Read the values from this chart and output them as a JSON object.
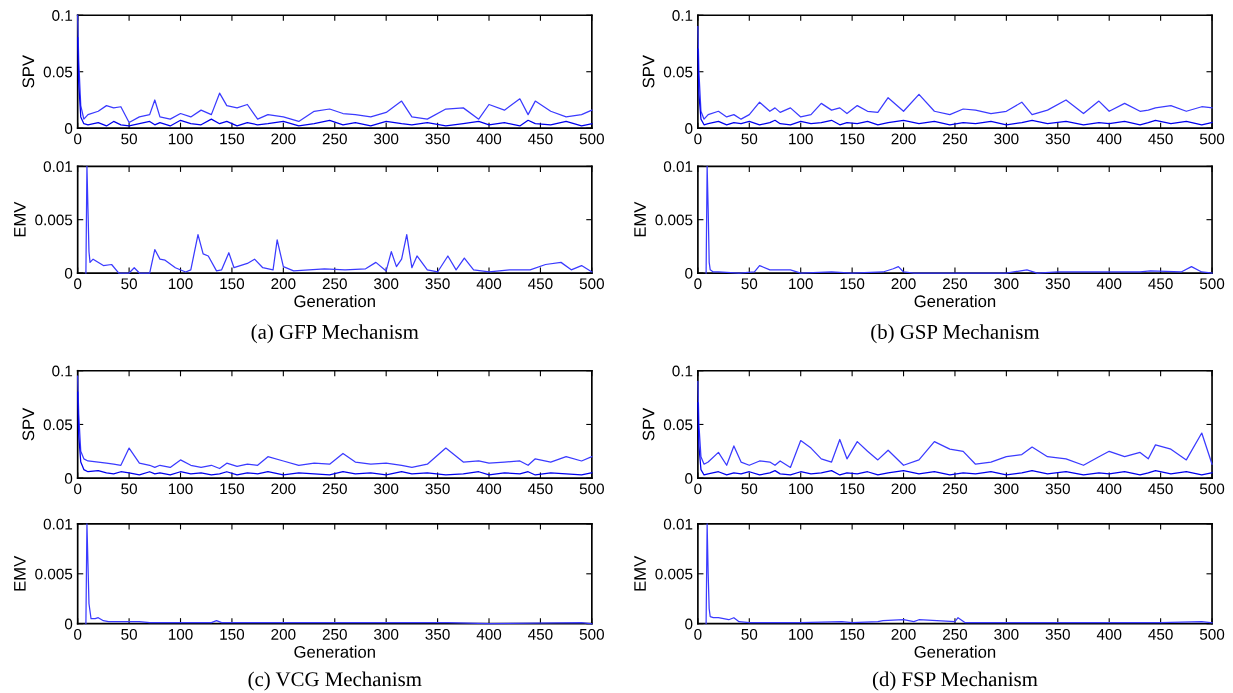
{
  "chart_data": [
    {
      "type": "line",
      "ylabel": "SPV",
      "xlim": [
        0,
        500
      ],
      "ylim": [
        0,
        0.1
      ],
      "xticks": [
        0,
        50,
        100,
        150,
        200,
        250,
        300,
        350,
        400,
        450,
        500
      ],
      "yticks": [
        0,
        0.05,
        0.1
      ],
      "grid": false,
      "x": [
        0,
        1,
        3,
        6,
        10,
        20,
        28,
        35,
        42,
        50,
        60,
        70,
        75,
        80,
        90,
        100,
        110,
        120,
        130,
        138,
        145,
        155,
        165,
        175,
        185,
        200,
        215,
        230,
        245,
        258,
        270,
        285,
        300,
        315,
        325,
        340,
        358,
        375,
        390,
        400,
        415,
        430,
        438,
        445,
        460,
        475,
        490,
        500
      ],
      "series": [
        {
          "color": "#3a3aff",
          "values": [
            0.1,
            0.06,
            0.02,
            0.008,
            0.012,
            0.015,
            0.02,
            0.018,
            0.019,
            0.005,
            0.01,
            0.012,
            0.025,
            0.01,
            0.008,
            0.013,
            0.01,
            0.016,
            0.012,
            0.031,
            0.02,
            0.018,
            0.021,
            0.008,
            0.012,
            0.01,
            0.006,
            0.015,
            0.017,
            0.013,
            0.012,
            0.01,
            0.014,
            0.024,
            0.01,
            0.008,
            0.017,
            0.018,
            0.008,
            0.021,
            0.016,
            0.026,
            0.012,
            0.024,
            0.015,
            0.01,
            0.012,
            0.016
          ]
        },
        {
          "color": "#0000ee",
          "values": [
            0.08,
            0.04,
            0.01,
            0.004,
            0.003,
            0.005,
            0.002,
            0.006,
            0.003,
            0.002,
            0.004,
            0.006,
            0.003,
            0.005,
            0.002,
            0.007,
            0.004,
            0.003,
            0.008,
            0.004,
            0.006,
            0.002,
            0.005,
            0.003,
            0.004,
            0.006,
            0.002,
            0.004,
            0.007,
            0.003,
            0.005,
            0.002,
            0.006,
            0.004,
            0.003,
            0.005,
            0.002,
            0.004,
            0.006,
            0.003,
            0.005,
            0.002,
            0.007,
            0.004,
            0.003,
            0.006,
            0.002,
            0.004
          ]
        }
      ]
    },
    {
      "type": "line",
      "ylabel": "SPV",
      "xlim": [
        0,
        500
      ],
      "ylim": [
        0,
        0.1
      ],
      "xticks": [
        0,
        50,
        100,
        150,
        200,
        250,
        300,
        350,
        400,
        450,
        500
      ],
      "yticks": [
        0,
        0.05,
        0.1
      ],
      "grid": false,
      "x": [
        0,
        1,
        3,
        6,
        10,
        20,
        28,
        35,
        42,
        50,
        60,
        70,
        75,
        80,
        90,
        100,
        110,
        120,
        130,
        138,
        145,
        155,
        165,
        175,
        185,
        200,
        215,
        230,
        245,
        258,
        270,
        285,
        300,
        315,
        325,
        340,
        358,
        375,
        390,
        400,
        415,
        430,
        438,
        445,
        460,
        475,
        490,
        500
      ],
      "series": [
        {
          "color": "#3a3aff",
          "values": [
            0.09,
            0.05,
            0.015,
            0.008,
            0.012,
            0.015,
            0.01,
            0.012,
            0.008,
            0.012,
            0.023,
            0.015,
            0.018,
            0.014,
            0.018,
            0.01,
            0.012,
            0.022,
            0.016,
            0.018,
            0.013,
            0.02,
            0.015,
            0.014,
            0.027,
            0.015,
            0.03,
            0.015,
            0.012,
            0.017,
            0.016,
            0.013,
            0.015,
            0.023,
            0.012,
            0.016,
            0.025,
            0.013,
            0.024,
            0.015,
            0.022,
            0.015,
            0.016,
            0.018,
            0.02,
            0.015,
            0.019,
            0.018
          ]
        },
        {
          "color": "#0000ee",
          "values": [
            0.07,
            0.03,
            0.008,
            0.003,
            0.004,
            0.006,
            0.003,
            0.005,
            0.004,
            0.006,
            0.003,
            0.005,
            0.007,
            0.004,
            0.003,
            0.006,
            0.004,
            0.005,
            0.007,
            0.003,
            0.005,
            0.004,
            0.006,
            0.003,
            0.005,
            0.007,
            0.004,
            0.006,
            0.003,
            0.005,
            0.004,
            0.006,
            0.003,
            0.005,
            0.007,
            0.004,
            0.006,
            0.003,
            0.005,
            0.004,
            0.006,
            0.003,
            0.005,
            0.007,
            0.004,
            0.006,
            0.003,
            0.005
          ]
        }
      ]
    },
    {
      "type": "line",
      "ylabel": "EMV",
      "xlabel": "Generation",
      "annotations": [
        "(a) GFP Mechanism"
      ],
      "xlim": [
        0,
        500
      ],
      "ylim": [
        0,
        0.01
      ],
      "xticks": [
        0,
        50,
        100,
        150,
        200,
        250,
        300,
        350,
        400,
        450,
        500
      ],
      "yticks": [
        0,
        0.005,
        0.01
      ],
      "grid": false,
      "x": [
        8,
        9,
        10,
        11,
        12,
        15,
        25,
        33,
        40,
        50,
        55,
        60,
        70,
        75,
        80,
        85,
        95,
        105,
        110,
        117,
        122,
        127,
        135,
        140,
        147,
        152,
        165,
        172,
        180,
        190,
        194,
        200,
        210,
        240,
        260,
        280,
        290,
        300,
        305,
        310,
        315,
        320,
        325,
        330,
        340,
        350,
        360,
        368,
        376,
        385,
        400,
        420,
        440,
        455,
        470,
        480,
        490,
        500
      ],
      "series": [
        {
          "color": "#3a3aff",
          "values": [
            0,
            0.01,
            0.006,
            0.002,
            0.001,
            0.0013,
            0.0007,
            0.0008,
            0,
            0,
            0.0005,
            0,
            0,
            0.0022,
            0.0013,
            0.0012,
            0.0005,
            0.0001,
            0.0003,
            0.0036,
            0.0018,
            0.0016,
            0.0002,
            0.0003,
            0.0019,
            0.0005,
            0.0009,
            0.0013,
            0.0005,
            0.0003,
            0.0031,
            0.0006,
            0.0002,
            0.0004,
            0.0003,
            0.0004,
            0.001,
            0.0002,
            0.002,
            0.0006,
            0.0013,
            0.0036,
            0.0005,
            0.0016,
            0.0003,
            0.0001,
            0.0016,
            0.0003,
            0.0014,
            0.0003,
            0.0001,
            0.0003,
            0.0003,
            0.0008,
            0.001,
            0.0003,
            0.0007,
            0.0001
          ]
        }
      ]
    },
    {
      "type": "line",
      "ylabel": "EMV",
      "xlabel": "Generation",
      "annotations": [
        "(b) GSP Mechanism"
      ],
      "xlim": [
        0,
        500
      ],
      "ylim": [
        0,
        0.01
      ],
      "xticks": [
        0,
        50,
        100,
        150,
        200,
        250,
        300,
        350,
        400,
        450,
        500
      ],
      "yticks": [
        0,
        0.005,
        0.01
      ],
      "grid": false,
      "x": [
        8,
        9,
        10,
        11,
        12,
        15,
        20,
        40,
        55,
        60,
        70,
        90,
        100,
        130,
        150,
        180,
        190,
        195,
        200,
        210,
        300,
        320,
        330,
        350,
        380,
        400,
        430,
        440,
        470,
        480,
        490,
        500
      ],
      "series": [
        {
          "color": "#3a3aff",
          "values": [
            0,
            0.01,
            0.006,
            0.001,
            0.0003,
            0.0001,
            0.0001,
            0,
            0.0001,
            0.0007,
            0.0003,
            0.0003,
            0,
            0.0001,
            0,
            0.0001,
            0.0004,
            0.0006,
            0.0001,
            0,
            0,
            0.0003,
            0,
            0.0001,
            0.0001,
            0.0001,
            0.0001,
            0.0002,
            0.0001,
            0.0006,
            0.0001,
            0
          ]
        }
      ]
    },
    {
      "type": "line",
      "ylabel": "SPV",
      "xlim": [
        0,
        500
      ],
      "ylim": [
        0,
        0.1
      ],
      "xticks": [
        0,
        50,
        100,
        150,
        200,
        250,
        300,
        350,
        400,
        450,
        500
      ],
      "yticks": [
        0,
        0.05,
        0.1
      ],
      "grid": false,
      "x": [
        0,
        1,
        3,
        6,
        10,
        20,
        28,
        35,
        42,
        50,
        60,
        70,
        75,
        80,
        90,
        100,
        110,
        120,
        130,
        138,
        145,
        155,
        165,
        175,
        185,
        200,
        215,
        230,
        245,
        258,
        270,
        285,
        300,
        315,
        325,
        340,
        358,
        375,
        390,
        400,
        415,
        430,
        438,
        445,
        460,
        475,
        490,
        500
      ],
      "series": [
        {
          "color": "#3a3aff",
          "values": [
            0.095,
            0.06,
            0.025,
            0.018,
            0.016,
            0.015,
            0.014,
            0.013,
            0.012,
            0.028,
            0.014,
            0.012,
            0.01,
            0.012,
            0.01,
            0.017,
            0.012,
            0.01,
            0.012,
            0.009,
            0.014,
            0.011,
            0.013,
            0.012,
            0.02,
            0.016,
            0.012,
            0.014,
            0.013,
            0.023,
            0.015,
            0.013,
            0.014,
            0.012,
            0.01,
            0.013,
            0.028,
            0.015,
            0.016,
            0.014,
            0.015,
            0.016,
            0.012,
            0.018,
            0.015,
            0.02,
            0.016,
            0.02
          ]
        },
        {
          "color": "#0000ee",
          "values": [
            0.08,
            0.04,
            0.015,
            0.008,
            0.006,
            0.007,
            0.005,
            0.004,
            0.006,
            0.005,
            0.003,
            0.006,
            0.004,
            0.005,
            0.003,
            0.006,
            0.004,
            0.005,
            0.003,
            0.004,
            0.006,
            0.003,
            0.005,
            0.004,
            0.006,
            0.003,
            0.005,
            0.004,
            0.003,
            0.006,
            0.004,
            0.005,
            0.003,
            0.006,
            0.004,
            0.005,
            0.003,
            0.004,
            0.006,
            0.003,
            0.005,
            0.004,
            0.006,
            0.003,
            0.005,
            0.004,
            0.003,
            0.005
          ]
        }
      ]
    },
    {
      "type": "line",
      "ylabel": "SPV",
      "xlim": [
        0,
        500
      ],
      "ylim": [
        0,
        0.1
      ],
      "xticks": [
        0,
        50,
        100,
        150,
        200,
        250,
        300,
        350,
        400,
        450,
        500
      ],
      "yticks": [
        0,
        0.05,
        0.1
      ],
      "grid": false,
      "x": [
        0,
        1,
        3,
        6,
        10,
        20,
        28,
        35,
        42,
        50,
        60,
        70,
        75,
        80,
        90,
        100,
        110,
        120,
        130,
        138,
        145,
        155,
        165,
        175,
        185,
        200,
        215,
        230,
        245,
        258,
        270,
        285,
        300,
        315,
        325,
        340,
        358,
        375,
        390,
        400,
        415,
        430,
        438,
        445,
        460,
        475,
        490,
        500
      ],
      "series": [
        {
          "color": "#3a3aff",
          "values": [
            0.09,
            0.05,
            0.02,
            0.013,
            0.015,
            0.024,
            0.012,
            0.03,
            0.015,
            0.012,
            0.016,
            0.015,
            0.012,
            0.016,
            0.01,
            0.035,
            0.028,
            0.018,
            0.015,
            0.036,
            0.018,
            0.034,
            0.025,
            0.017,
            0.026,
            0.012,
            0.017,
            0.034,
            0.027,
            0.025,
            0.013,
            0.015,
            0.02,
            0.022,
            0.029,
            0.02,
            0.018,
            0.012,
            0.02,
            0.025,
            0.02,
            0.024,
            0.018,
            0.031,
            0.027,
            0.017,
            0.042,
            0.013
          ]
        },
        {
          "color": "#0000ee",
          "values": [
            0.07,
            0.03,
            0.008,
            0.003,
            0.004,
            0.006,
            0.003,
            0.005,
            0.004,
            0.006,
            0.003,
            0.005,
            0.007,
            0.004,
            0.003,
            0.006,
            0.004,
            0.005,
            0.007,
            0.003,
            0.005,
            0.004,
            0.006,
            0.003,
            0.005,
            0.007,
            0.004,
            0.006,
            0.003,
            0.005,
            0.004,
            0.006,
            0.003,
            0.005,
            0.007,
            0.004,
            0.006,
            0.003,
            0.005,
            0.004,
            0.006,
            0.003,
            0.005,
            0.007,
            0.004,
            0.006,
            0.003,
            0.005
          ]
        }
      ]
    },
    {
      "type": "line",
      "ylabel": "EMV",
      "xlabel": "Generation",
      "annotations": [
        "(c) VCG Mechanism"
      ],
      "xlim": [
        0,
        500
      ],
      "ylim": [
        0,
        0.01
      ],
      "xticks": [
        0,
        50,
        100,
        150,
        200,
        250,
        300,
        350,
        400,
        450,
        500
      ],
      "yticks": [
        0,
        0.005,
        0.01
      ],
      "grid": false,
      "x": [
        8,
        9,
        10,
        11,
        13,
        17,
        20,
        25,
        30,
        50,
        60,
        70,
        100,
        130,
        135,
        140,
        200,
        240,
        300,
        350,
        360,
        400,
        490,
        500
      ],
      "series": [
        {
          "color": "#3a3aff",
          "values": [
            0,
            0.01,
            0.006,
            0.002,
            0.0005,
            0.0005,
            0.0006,
            0.0003,
            0.0002,
            0.0002,
            0.0002,
            0.0001,
            0.0001,
            0.0001,
            0.0003,
            0.0001,
            0.0001,
            0.0001,
            0.0001,
            0.0001,
            0.0001,
            0,
            0.0001,
            0
          ]
        }
      ]
    },
    {
      "type": "line",
      "ylabel": "EMV",
      "xlabel": "Generation",
      "annotations": [
        "(d) FSP Mechanism"
      ],
      "xlim": [
        0,
        500
      ],
      "ylim": [
        0,
        0.01
      ],
      "xticks": [
        0,
        50,
        100,
        150,
        200,
        250,
        300,
        350,
        400,
        450,
        500
      ],
      "yticks": [
        0,
        0.005,
        0.01
      ],
      "grid": false,
      "x": [
        8,
        9,
        10,
        11,
        12,
        15,
        20,
        30,
        35,
        40,
        50,
        100,
        140,
        150,
        175,
        180,
        200,
        210,
        215,
        250,
        253,
        260,
        300,
        350,
        400,
        450,
        490,
        500
      ],
      "series": [
        {
          "color": "#3a3aff",
          "values": [
            0,
            0.01,
            0.005,
            0.0015,
            0.0007,
            0.0006,
            0.0006,
            0.0004,
            0.0006,
            0.0002,
            0.0001,
            0.0001,
            0.0002,
            0.0001,
            0.0002,
            0.0003,
            0.0004,
            0.0002,
            0.0004,
            0.0002,
            0.0006,
            0.0001,
            0.0001,
            0.0001,
            0.0001,
            0.0001,
            0.0002,
            0.0001
          ]
        }
      ]
    }
  ]
}
